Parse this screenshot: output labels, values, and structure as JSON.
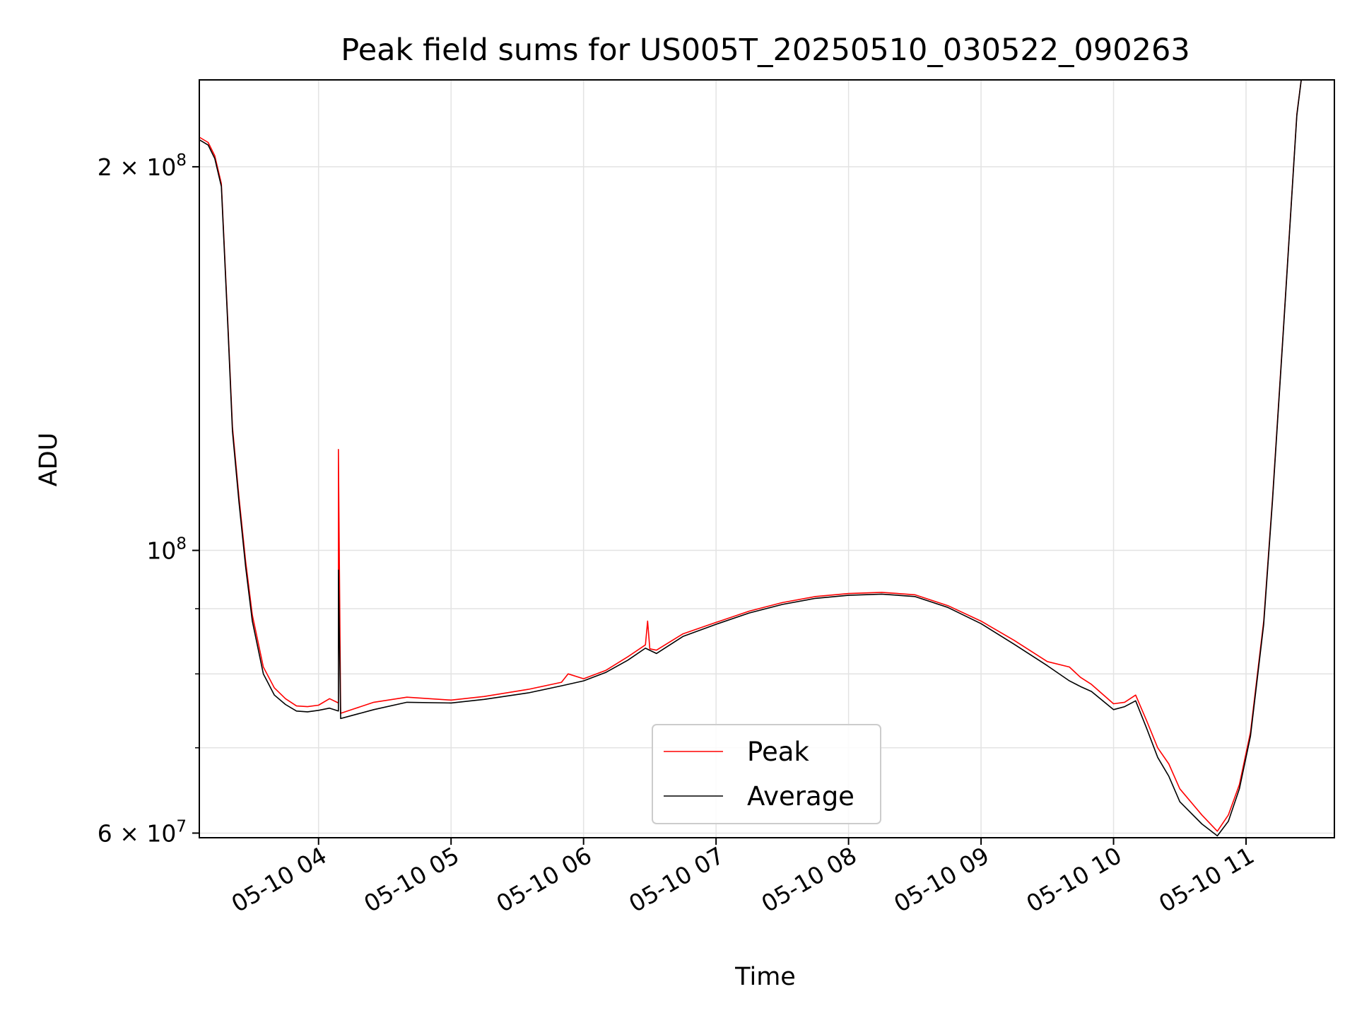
{
  "chart_data": {
    "type": "line",
    "title": "Peak field sums for US005T_20250510_030522_090263",
    "xlabel": "Time",
    "ylabel": "ADU",
    "x_range": [
      "05-10 03:06",
      "05-10 11:40"
    ],
    "ylim": [
      59500000,
      234000000
    ],
    "y_scale": "log",
    "grid": true,
    "legend_position": "lower center",
    "x_tick_labels": [
      "05-10 04",
      "05-10 05",
      "05-10 06",
      "05-10 07",
      "05-10 08",
      "05-10 09",
      "05-10 10",
      "05-10 11"
    ],
    "x_tick_values": [
      "05-10 04:00",
      "05-10 05:00",
      "05-10 06:00",
      "05-10 07:00",
      "05-10 08:00",
      "05-10 09:00",
      "05-10 10:00",
      "05-10 11:00"
    ],
    "y_tick_labels": [
      {
        "value": 60000000,
        "mantissa": "6",
        "exp": "7"
      },
      {
        "value": 100000000,
        "mantissa": "",
        "exp": "8"
      },
      {
        "value": 200000000,
        "mantissa": "2",
        "exp": "8"
      }
    ],
    "y_minor_gridlines": [
      70000000,
      80000000,
      90000000
    ],
    "series": [
      {
        "name": "Peak",
        "color": "#ff0000",
        "x": [
          "05-10 03:06",
          "05-10 03:10",
          "05-10 03:13",
          "05-10 03:16",
          "05-10 03:19",
          "05-10 03:21",
          "05-10 03:24",
          "05-10 03:27",
          "05-10 03:30",
          "05-10 03:35",
          "05-10 03:40",
          "05-10 03:45",
          "05-10 03:50",
          "05-10 03:55",
          "05-10 04:00",
          "05-10 04:05",
          "05-10 04:09",
          "05-10 04:09",
          "05-10 04:10",
          "05-10 04:15",
          "05-10 04:25",
          "05-10 04:40",
          "05-10 05:00",
          "05-10 05:15",
          "05-10 05:35",
          "05-10 05:50",
          "05-10 05:53",
          "05-10 06:00",
          "05-10 06:10",
          "05-10 06:20",
          "05-10 06:28",
          "05-10 06:29",
          "05-10 06:30",
          "05-10 06:33",
          "05-10 06:45",
          "05-10 07:00",
          "05-10 07:15",
          "05-10 07:30",
          "05-10 07:45",
          "05-10 08:00",
          "05-10 08:15",
          "05-10 08:30",
          "05-10 08:45",
          "05-10 09:00",
          "05-10 09:15",
          "05-10 09:30",
          "05-10 09:40",
          "05-10 09:45",
          "05-10 09:50",
          "05-10 10:00",
          "05-10 10:05",
          "05-10 10:10",
          "05-10 10:15",
          "05-10 10:20",
          "05-10 10:25",
          "05-10 10:30",
          "05-10 10:40",
          "05-10 10:47",
          "05-10 10:52",
          "05-10 10:57",
          "05-10 11:02",
          "05-10 11:08",
          "05-10 11:12",
          "05-10 11:17",
          "05-10 11:23",
          "05-10 11:25"
        ],
        "y": [
          211000000,
          209000000,
          204000000,
          194000000,
          150000000,
          125000000,
          110000000,
          98000000,
          89000000,
          81000000,
          78000000,
          76500000,
          75500000,
          75400000,
          75600000,
          76500000,
          75900000,
          120000000,
          74500000,
          75000000,
          76000000,
          76700000,
          76300000,
          76800000,
          77800000,
          78800000,
          80000000,
          79300000,
          80500000,
          82500000,
          84300000,
          88000000,
          83700000,
          83500000,
          86000000,
          87800000,
          89600000,
          91000000,
          92000000,
          92500000,
          92700000,
          92300000,
          90500000,
          88000000,
          85000000,
          81800000,
          81000000,
          79500000,
          78500000,
          75800000,
          76000000,
          77000000,
          73500000,
          70000000,
          68000000,
          65000000,
          62000000,
          60200000,
          62000000,
          65500000,
          72000000,
          88000000,
          110000000,
          150000000,
          220000000,
          234000000
        ]
      },
      {
        "name": "Average",
        "color": "#000000",
        "x": [
          "05-10 03:06",
          "05-10 03:10",
          "05-10 03:13",
          "05-10 03:16",
          "05-10 03:19",
          "05-10 03:21",
          "05-10 03:24",
          "05-10 03:27",
          "05-10 03:30",
          "05-10 03:35",
          "05-10 03:40",
          "05-10 03:45",
          "05-10 03:50",
          "05-10 03:55",
          "05-10 04:00",
          "05-10 04:05",
          "05-10 04:09",
          "05-10 04:09",
          "05-10 04:10",
          "05-10 04:15",
          "05-10 04:25",
          "05-10 04:40",
          "05-10 05:00",
          "05-10 05:15",
          "05-10 05:35",
          "05-10 05:50",
          "05-10 06:00",
          "05-10 06:10",
          "05-10 06:20",
          "05-10 06:28",
          "05-10 06:33",
          "05-10 06:45",
          "05-10 07:00",
          "05-10 07:15",
          "05-10 07:30",
          "05-10 07:45",
          "05-10 08:00",
          "05-10 08:15",
          "05-10 08:30",
          "05-10 08:45",
          "05-10 09:00",
          "05-10 09:15",
          "05-10 09:30",
          "05-10 09:40",
          "05-10 09:45",
          "05-10 09:50",
          "05-10 10:00",
          "05-10 10:05",
          "05-10 10:10",
          "05-10 10:15",
          "05-10 10:20",
          "05-10 10:25",
          "05-10 10:30",
          "05-10 10:40",
          "05-10 10:47",
          "05-10 10:52",
          "05-10 10:57",
          "05-10 11:02",
          "05-10 11:08",
          "05-10 11:12",
          "05-10 11:17",
          "05-10 11:23",
          "05-10 11:25"
        ],
        "y": [
          210000000,
          208000000,
          203000000,
          193000000,
          149000000,
          124000000,
          109000000,
          97000000,
          88000000,
          80000000,
          77000000,
          75700000,
          74800000,
          74700000,
          74900000,
          75200000,
          74800000,
          96500000,
          73800000,
          74200000,
          75000000,
          76000000,
          75900000,
          76400000,
          77300000,
          78300000,
          79000000,
          80200000,
          82000000,
          83800000,
          83000000,
          85600000,
          87500000,
          89300000,
          90700000,
          91700000,
          92200000,
          92400000,
          92000000,
          90200000,
          87600000,
          84400000,
          81200000,
          79000000,
          78200000,
          77500000,
          75000000,
          75400000,
          76200000,
          72500000,
          68800000,
          66500000,
          63500000,
          61000000,
          59700000,
          61300000,
          65000000,
          71500000,
          87500000,
          109500000,
          149500000,
          219500000,
          234000000
        ]
      }
    ]
  }
}
